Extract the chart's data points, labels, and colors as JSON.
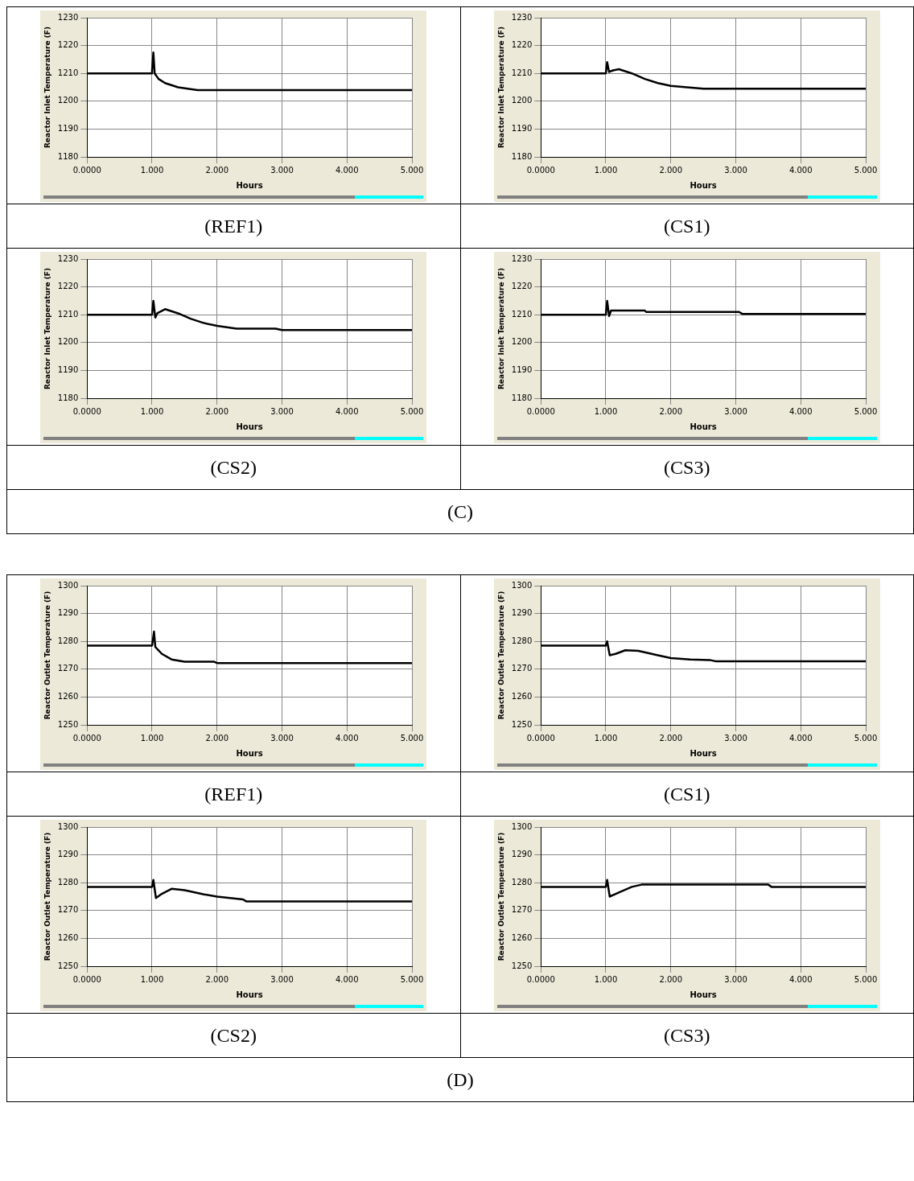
{
  "chart_data": [
    {
      "type": "line",
      "title": "(REF1)",
      "xlabel": "Hours",
      "ylabel": "Reactor Inlet Temperature (F)",
      "xlim": [
        0,
        5
      ],
      "ylim": [
        1180,
        1230
      ],
      "xticks": [
        {
          "value": 0,
          "label": "0.0000"
        },
        {
          "value": 1,
          "label": "1.000"
        },
        {
          "value": 2,
          "label": "2.000"
        },
        {
          "value": 3,
          "label": "3.000"
        },
        {
          "value": 4,
          "label": "4.000"
        },
        {
          "value": 5,
          "label": "5.000"
        }
      ],
      "yticks": [
        1180,
        1190,
        1200,
        1210,
        1220,
        1230
      ],
      "grid": true,
      "legend": false,
      "marker": "none",
      "line_style": "solid",
      "series": [
        {
          "color": "#000000",
          "x": [
            0,
            0.99,
            1.0,
            1.02,
            1.04,
            1.1,
            1.2,
            1.4,
            1.7,
            5
          ],
          "values": [
            1210,
            1210,
            1211,
            1217.5,
            1210,
            1208,
            1206.5,
            1205,
            1204,
            1204
          ]
        }
      ]
    },
    {
      "type": "line",
      "title": "(CS1)",
      "xlabel": "Hours",
      "ylabel": "Reactor Inlet Temperature (F)",
      "xlim": [
        0,
        5
      ],
      "ylim": [
        1180,
        1230
      ],
      "xticks": [
        {
          "value": 0,
          "label": "0.0000"
        },
        {
          "value": 1,
          "label": "1.000"
        },
        {
          "value": 2,
          "label": "2.000"
        },
        {
          "value": 3,
          "label": "3.000"
        },
        {
          "value": 4,
          "label": "4.000"
        },
        {
          "value": 5,
          "label": "5.000"
        }
      ],
      "yticks": [
        1180,
        1190,
        1200,
        1210,
        1220,
        1230
      ],
      "grid": true,
      "legend": false,
      "marker": "none",
      "line_style": "solid",
      "series": [
        {
          "color": "#000000",
          "x": [
            0,
            1.0,
            1.02,
            1.05,
            1.1,
            1.2,
            1.4,
            1.6,
            1.8,
            2.0,
            2.5,
            5
          ],
          "values": [
            1210,
            1210,
            1214,
            1210.5,
            1211,
            1211.5,
            1210,
            1208,
            1206.5,
            1205.5,
            1204.5,
            1204.5
          ]
        }
      ]
    },
    {
      "type": "line",
      "title": "(CS2)",
      "xlabel": "Hours",
      "ylabel": "Reactor Inlet Temperature (F)",
      "xlim": [
        0,
        5
      ],
      "ylim": [
        1180,
        1230
      ],
      "xticks": [
        {
          "value": 0,
          "label": "0.0000"
        },
        {
          "value": 1,
          "label": "1.000"
        },
        {
          "value": 2,
          "label": "2.000"
        },
        {
          "value": 3,
          "label": "3.000"
        },
        {
          "value": 4,
          "label": "4.000"
        },
        {
          "value": 5,
          "label": "5.000"
        }
      ],
      "yticks": [
        1180,
        1190,
        1200,
        1210,
        1220,
        1230
      ],
      "grid": true,
      "legend": false,
      "marker": "none",
      "line_style": "solid",
      "series": [
        {
          "color": "#000000",
          "x": [
            0,
            1.0,
            1.02,
            1.05,
            1.08,
            1.2,
            1.4,
            1.6,
            1.8,
            2.0,
            2.3,
            2.9,
            3.0,
            5
          ],
          "values": [
            1210,
            1210,
            1215,
            1209,
            1210.5,
            1212,
            1210.5,
            1208.5,
            1207,
            1206,
            1205,
            1205,
            1204.5,
            1204.5
          ]
        }
      ]
    },
    {
      "type": "line",
      "title": "(CS3)",
      "xlabel": "Hours",
      "ylabel": "Reactor Inlet Temperature (F)",
      "xlim": [
        0,
        5
      ],
      "ylim": [
        1180,
        1230
      ],
      "xticks": [
        {
          "value": 0,
          "label": "0.0000"
        },
        {
          "value": 1,
          "label": "1.000"
        },
        {
          "value": 2,
          "label": "2.000"
        },
        {
          "value": 3,
          "label": "3.000"
        },
        {
          "value": 4,
          "label": "4.000"
        },
        {
          "value": 5,
          "label": "5.000"
        }
      ],
      "yticks": [
        1180,
        1190,
        1200,
        1210,
        1220,
        1230
      ],
      "grid": true,
      "legend": false,
      "marker": "none",
      "line_style": "solid",
      "series": [
        {
          "color": "#000000",
          "x": [
            0,
            1.0,
            1.02,
            1.05,
            1.08,
            1.6,
            1.62,
            3.05,
            3.1,
            5
          ],
          "values": [
            1210,
            1210,
            1215,
            1209.5,
            1211.5,
            1211.5,
            1211,
            1211,
            1210.3,
            1210.3
          ]
        }
      ]
    },
    {
      "type": "other",
      "title": "(C)"
    },
    {
      "type": "line",
      "title": "(REF1)",
      "xlabel": "Hours",
      "ylabel": "Reactor Outlet Temperature (F)",
      "xlim": [
        0,
        5
      ],
      "ylim": [
        1250,
        1300
      ],
      "xticks": [
        {
          "value": 0,
          "label": "0.0000"
        },
        {
          "value": 1,
          "label": "1.000"
        },
        {
          "value": 2,
          "label": "2.000"
        },
        {
          "value": 3,
          "label": "3.000"
        },
        {
          "value": 4,
          "label": "4.000"
        },
        {
          "value": 5,
          "label": "5.000"
        }
      ],
      "yticks": [
        1250,
        1260,
        1270,
        1280,
        1290,
        1300
      ],
      "grid": true,
      "legend": false,
      "marker": "none",
      "line_style": "solid",
      "series": [
        {
          "color": "#000000",
          "x": [
            0,
            1.0,
            1.03,
            1.05,
            1.15,
            1.3,
            1.5,
            1.95,
            2.0,
            5
          ],
          "values": [
            1278.5,
            1278.5,
            1283.5,
            1278,
            1275.5,
            1273.5,
            1272.7,
            1272.7,
            1272.2,
            1272.2
          ]
        }
      ]
    },
    {
      "type": "line",
      "title": "(CS1)",
      "xlabel": "Hours",
      "ylabel": "Reactor Outlet Temperature (F)",
      "xlim": [
        0,
        5
      ],
      "ylim": [
        1250,
        1300
      ],
      "xticks": [
        {
          "value": 0,
          "label": "0.0000"
        },
        {
          "value": 1,
          "label": "1.000"
        },
        {
          "value": 2,
          "label": "2.000"
        },
        {
          "value": 3,
          "label": "3.000"
        },
        {
          "value": 4,
          "label": "4.000"
        },
        {
          "value": 5,
          "label": "5.000"
        }
      ],
      "yticks": [
        1250,
        1260,
        1270,
        1280,
        1290,
        1300
      ],
      "grid": true,
      "legend": false,
      "marker": "none",
      "line_style": "solid",
      "series": [
        {
          "color": "#000000",
          "x": [
            0,
            1.0,
            1.02,
            1.06,
            1.15,
            1.3,
            1.5,
            1.8,
            2.0,
            2.3,
            2.6,
            2.7,
            5
          ],
          "values": [
            1278.5,
            1278.5,
            1280,
            1275,
            1275.5,
            1276.8,
            1276.6,
            1275,
            1274,
            1273.5,
            1273.3,
            1272.8,
            1272.8
          ]
        }
      ]
    },
    {
      "type": "line",
      "title": "(CS2)",
      "xlabel": "Hours",
      "ylabel": "Reactor Outlet Temperature (F)",
      "xlim": [
        0,
        5
      ],
      "ylim": [
        1250,
        1300
      ],
      "xticks": [
        {
          "value": 0,
          "label": "0.0000"
        },
        {
          "value": 1,
          "label": "1.000"
        },
        {
          "value": 2,
          "label": "2.000"
        },
        {
          "value": 3,
          "label": "3.000"
        },
        {
          "value": 4,
          "label": "4.000"
        },
        {
          "value": 5,
          "label": "5.000"
        }
      ],
      "yticks": [
        1250,
        1260,
        1270,
        1280,
        1290,
        1300
      ],
      "grid": true,
      "legend": false,
      "marker": "none",
      "line_style": "solid",
      "series": [
        {
          "color": "#000000",
          "x": [
            0,
            1.0,
            1.02,
            1.06,
            1.15,
            1.3,
            1.5,
            1.8,
            2.0,
            2.4,
            2.45,
            5
          ],
          "values": [
            1278.5,
            1278.5,
            1281,
            1274.5,
            1276,
            1277.8,
            1277.3,
            1275.8,
            1275,
            1274,
            1273.3,
            1273.3
          ]
        }
      ]
    },
    {
      "type": "line",
      "title": "(CS3)",
      "xlabel": "Hours",
      "ylabel": "Reactor Outlet Temperature (F)",
      "xlim": [
        0,
        5
      ],
      "ylim": [
        1250,
        1300
      ],
      "xticks": [
        {
          "value": 0,
          "label": "0.0000"
        },
        {
          "value": 1,
          "label": "1.000"
        },
        {
          "value": 2,
          "label": "2.000"
        },
        {
          "value": 3,
          "label": "3.000"
        },
        {
          "value": 4,
          "label": "4.000"
        },
        {
          "value": 5,
          "label": "5.000"
        }
      ],
      "yticks": [
        1250,
        1260,
        1270,
        1280,
        1290,
        1300
      ],
      "grid": true,
      "legend": false,
      "marker": "none",
      "line_style": "solid",
      "series": [
        {
          "color": "#000000",
          "x": [
            0,
            1.0,
            1.02,
            1.06,
            1.2,
            1.4,
            1.55,
            3.5,
            3.55,
            5
          ],
          "values": [
            1278.5,
            1278.5,
            1281,
            1275,
            1276.5,
            1278.5,
            1279.3,
            1279.3,
            1278.5,
            1278.5
          ]
        }
      ]
    },
    {
      "type": "other",
      "title": "(D)"
    }
  ]
}
